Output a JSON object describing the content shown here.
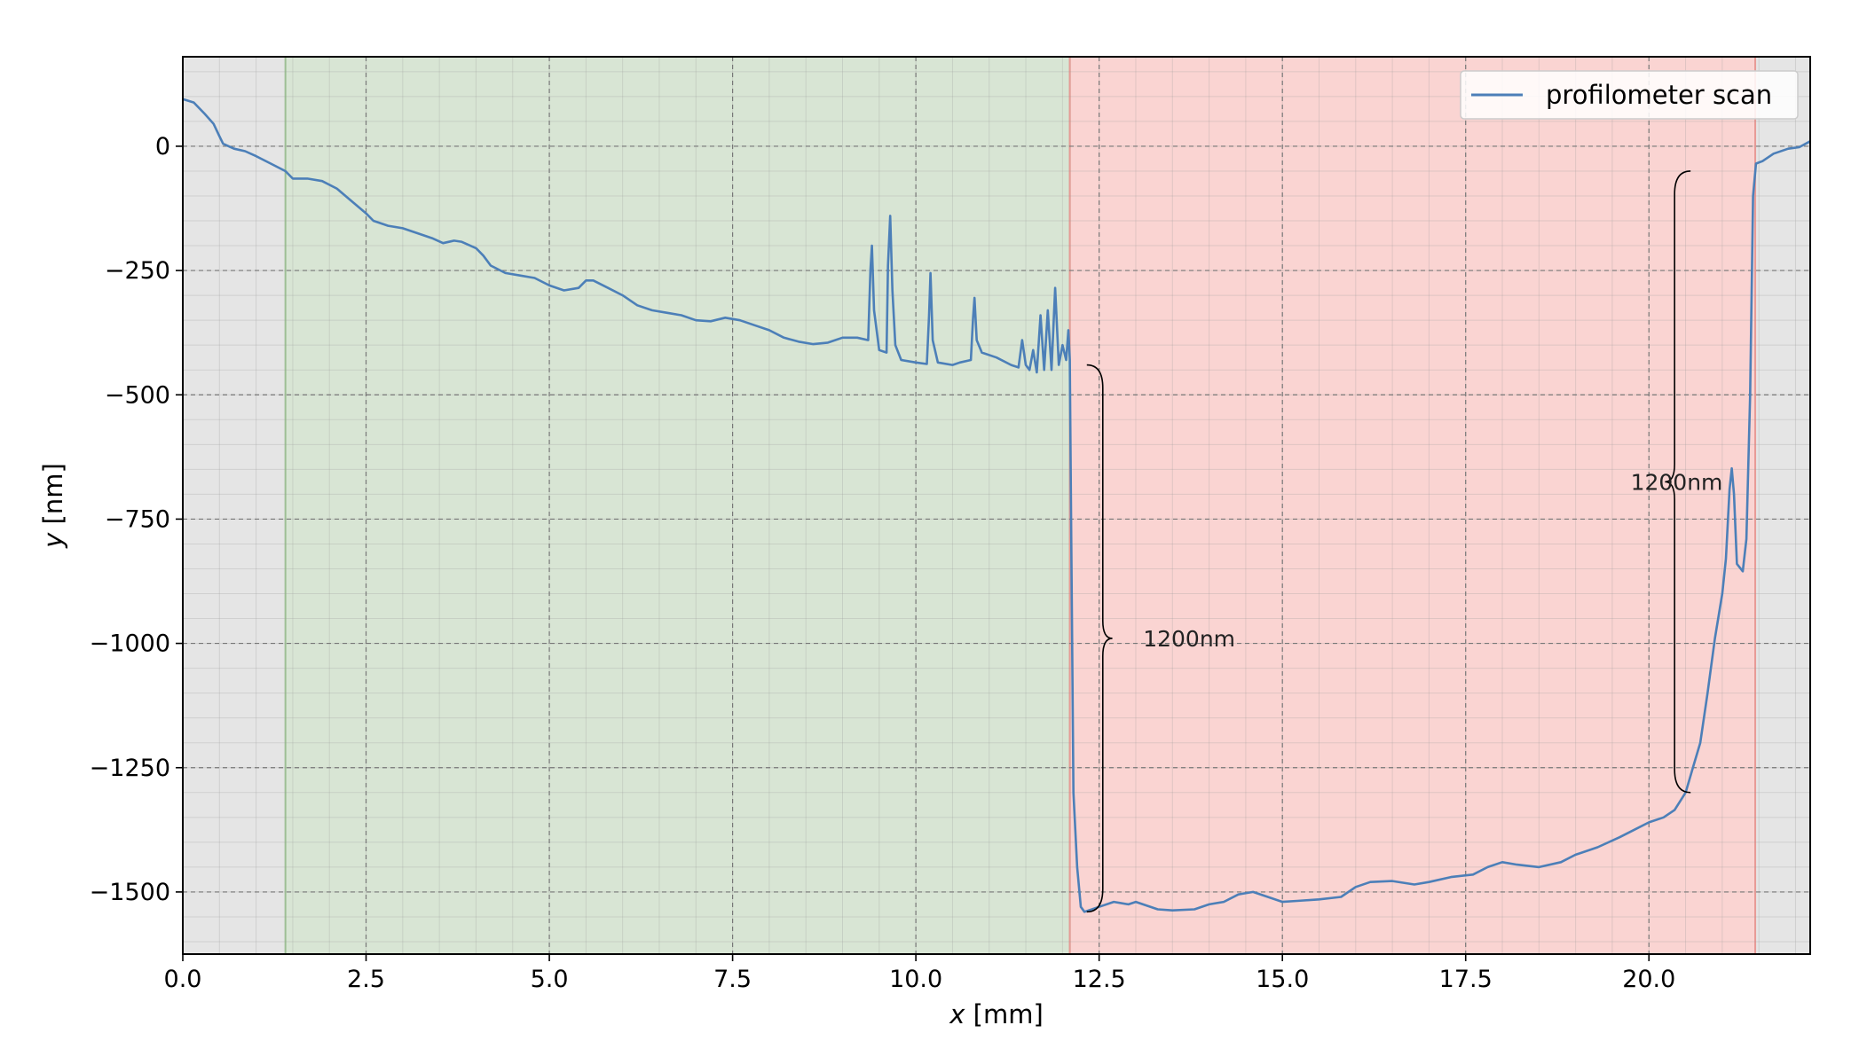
{
  "chart_data": {
    "type": "line",
    "title": "",
    "xlabel_var": "x",
    "xlabel_unit": " [mm]",
    "ylabel_var": "y",
    "ylabel_unit": " [nm]",
    "xlim": [
      0,
      22.2
    ],
    "ylim": [
      -1625,
      180
    ],
    "x_ticks": [
      0.0,
      2.5,
      5.0,
      7.5,
      10.0,
      12.5,
      15.0,
      17.5,
      20.0
    ],
    "x_tick_labels": [
      "0.0",
      "2.5",
      "5.0",
      "7.5",
      "10.0",
      "12.5",
      "15.0",
      "17.5",
      "20.0"
    ],
    "y_ticks": [
      0,
      -250,
      -500,
      -750,
      -1000,
      -1250,
      -1500
    ],
    "y_tick_labels": [
      "0",
      "−250",
      "−500",
      "−750",
      "−1000",
      "−1250",
      "−1500"
    ],
    "grid": true,
    "legend_position": "top-right",
    "regions": [
      {
        "x_start": 0.0,
        "x_end": 1.4,
        "color": "#e5e5e5"
      },
      {
        "x_start": 1.4,
        "x_end": 12.1,
        "color": "#d8e5d4",
        "edge": "#9dbf94"
      },
      {
        "x_start": 12.1,
        "x_end": 21.45,
        "color": "#fad4d2",
        "edge": "#e89a96"
      },
      {
        "x_start": 21.45,
        "x_end": 22.2,
        "color": "#e5e5e5"
      }
    ],
    "annotations": [
      {
        "text": "1200nm",
        "x_brace": 12.55,
        "y_top": -440,
        "y_bottom": -1540,
        "side": "right",
        "text_x": 13.1
      },
      {
        "text": "1200nm",
        "x_brace": 20.35,
        "y_top": -50,
        "y_bottom": -1300,
        "side": "left",
        "text_x": 19.75
      }
    ],
    "series": [
      {
        "name": "profilometer scan",
        "color": "#4c7fb8",
        "points": [
          [
            0.0,
            95
          ],
          [
            0.15,
            88
          ],
          [
            0.3,
            65
          ],
          [
            0.42,
            45
          ],
          [
            0.5,
            20
          ],
          [
            0.55,
            5
          ],
          [
            0.7,
            -5
          ],
          [
            0.85,
            -10
          ],
          [
            1.0,
            -20
          ],
          [
            1.2,
            -35
          ],
          [
            1.4,
            -50
          ],
          [
            1.5,
            -65
          ],
          [
            1.7,
            -65
          ],
          [
            1.9,
            -70
          ],
          [
            2.1,
            -85
          ],
          [
            2.3,
            -110
          ],
          [
            2.5,
            -135
          ],
          [
            2.6,
            -150
          ],
          [
            2.8,
            -160
          ],
          [
            3.0,
            -165
          ],
          [
            3.2,
            -175
          ],
          [
            3.4,
            -185
          ],
          [
            3.55,
            -195
          ],
          [
            3.7,
            -190
          ],
          [
            3.8,
            -192
          ],
          [
            4.0,
            -205
          ],
          [
            4.1,
            -220
          ],
          [
            4.2,
            -240
          ],
          [
            4.4,
            -255
          ],
          [
            4.6,
            -260
          ],
          [
            4.8,
            -265
          ],
          [
            5.0,
            -280
          ],
          [
            5.2,
            -290
          ],
          [
            5.4,
            -285
          ],
          [
            5.5,
            -270
          ],
          [
            5.6,
            -270
          ],
          [
            5.8,
            -285
          ],
          [
            6.0,
            -300
          ],
          [
            6.2,
            -320
          ],
          [
            6.4,
            -330
          ],
          [
            6.6,
            -335
          ],
          [
            6.8,
            -340
          ],
          [
            7.0,
            -350
          ],
          [
            7.2,
            -352
          ],
          [
            7.4,
            -345
          ],
          [
            7.6,
            -350
          ],
          [
            7.8,
            -360
          ],
          [
            8.0,
            -370
          ],
          [
            8.2,
            -385
          ],
          [
            8.4,
            -393
          ],
          [
            8.6,
            -398
          ],
          [
            8.8,
            -395
          ],
          [
            9.0,
            -385
          ],
          [
            9.2,
            -385
          ],
          [
            9.35,
            -390
          ],
          [
            9.38,
            -250
          ],
          [
            9.4,
            -200
          ],
          [
            9.43,
            -330
          ],
          [
            9.5,
            -410
          ],
          [
            9.6,
            -415
          ],
          [
            9.62,
            -240
          ],
          [
            9.65,
            -140
          ],
          [
            9.68,
            -290
          ],
          [
            9.72,
            -400
          ],
          [
            9.8,
            -430
          ],
          [
            10.0,
            -435
          ],
          [
            10.15,
            -438
          ],
          [
            10.18,
            -340
          ],
          [
            10.2,
            -255
          ],
          [
            10.23,
            -390
          ],
          [
            10.3,
            -435
          ],
          [
            10.5,
            -440
          ],
          [
            10.6,
            -435
          ],
          [
            10.75,
            -430
          ],
          [
            10.78,
            -345
          ],
          [
            10.8,
            -305
          ],
          [
            10.83,
            -390
          ],
          [
            10.9,
            -415
          ],
          [
            11.1,
            -425
          ],
          [
            11.3,
            -440
          ],
          [
            11.4,
            -445
          ],
          [
            11.45,
            -390
          ],
          [
            11.5,
            -440
          ],
          [
            11.55,
            -450
          ],
          [
            11.6,
            -410
          ],
          [
            11.65,
            -455
          ],
          [
            11.7,
            -340
          ],
          [
            11.75,
            -450
          ],
          [
            11.8,
            -330
          ],
          [
            11.85,
            -450
          ],
          [
            11.9,
            -285
          ],
          [
            11.95,
            -440
          ],
          [
            12.0,
            -400
          ],
          [
            12.05,
            -430
          ],
          [
            12.08,
            -370
          ],
          [
            12.1,
            -430
          ],
          [
            12.12,
            -800
          ],
          [
            12.15,
            -1300
          ],
          [
            12.2,
            -1450
          ],
          [
            12.25,
            -1530
          ],
          [
            12.3,
            -1540
          ],
          [
            12.5,
            -1530
          ],
          [
            12.7,
            -1520
          ],
          [
            12.9,
            -1525
          ],
          [
            13.0,
            -1520
          ],
          [
            13.3,
            -1535
          ],
          [
            13.5,
            -1537
          ],
          [
            13.8,
            -1535
          ],
          [
            14.0,
            -1525
          ],
          [
            14.2,
            -1520
          ],
          [
            14.4,
            -1505
          ],
          [
            14.6,
            -1500
          ],
          [
            14.8,
            -1510
          ],
          [
            15.0,
            -1520
          ],
          [
            15.2,
            -1518
          ],
          [
            15.5,
            -1515
          ],
          [
            15.8,
            -1510
          ],
          [
            16.0,
            -1490
          ],
          [
            16.2,
            -1480
          ],
          [
            16.5,
            -1478
          ],
          [
            16.8,
            -1485
          ],
          [
            17.0,
            -1480
          ],
          [
            17.3,
            -1470
          ],
          [
            17.6,
            -1465
          ],
          [
            17.8,
            -1450
          ],
          [
            18.0,
            -1440
          ],
          [
            18.2,
            -1445
          ],
          [
            18.5,
            -1450
          ],
          [
            18.8,
            -1440
          ],
          [
            19.0,
            -1425
          ],
          [
            19.3,
            -1410
          ],
          [
            19.6,
            -1390
          ],
          [
            19.8,
            -1375
          ],
          [
            20.0,
            -1360
          ],
          [
            20.2,
            -1350
          ],
          [
            20.35,
            -1335
          ],
          [
            20.5,
            -1300
          ],
          [
            20.6,
            -1250
          ],
          [
            20.7,
            -1200
          ],
          [
            20.8,
            -1100
          ],
          [
            20.9,
            -990
          ],
          [
            21.0,
            -900
          ],
          [
            21.05,
            -830
          ],
          [
            21.1,
            -690
          ],
          [
            21.13,
            -648
          ],
          [
            21.16,
            -700
          ],
          [
            21.2,
            -840
          ],
          [
            21.28,
            -855
          ],
          [
            21.33,
            -790
          ],
          [
            21.38,
            -500
          ],
          [
            21.42,
            -100
          ],
          [
            21.46,
            -35
          ],
          [
            21.55,
            -30
          ],
          [
            21.7,
            -15
          ],
          [
            21.9,
            -5
          ],
          [
            22.05,
            -2
          ],
          [
            22.2,
            10
          ]
        ]
      }
    ]
  }
}
